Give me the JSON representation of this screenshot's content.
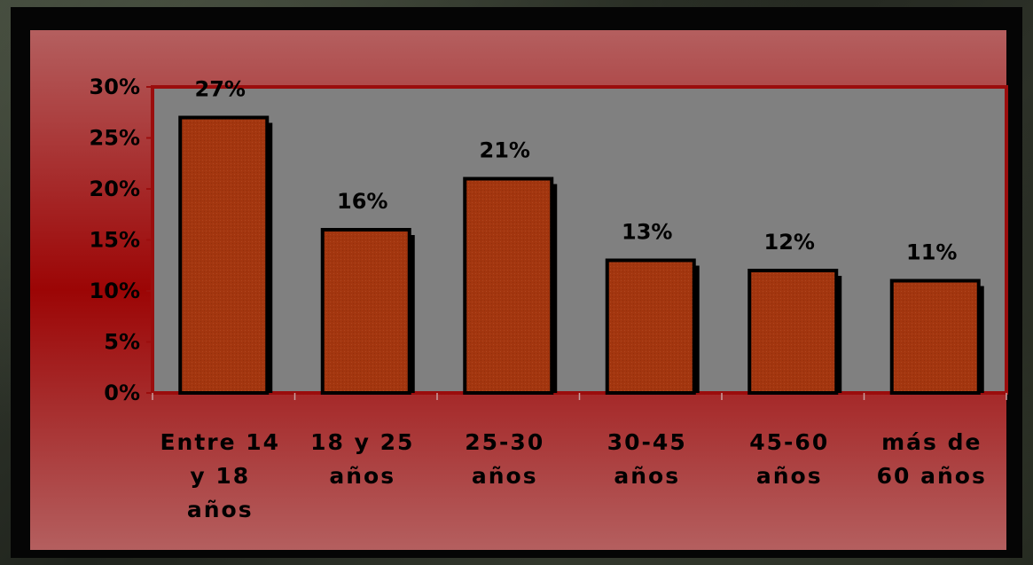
{
  "chart_data": {
    "type": "bar",
    "categories": [
      [
        "Entre 14",
        "y 18",
        "años"
      ],
      [
        "18 y 25",
        "años"
      ],
      [
        "25-30",
        "años"
      ],
      [
        "30-45",
        "años"
      ],
      [
        "45-60",
        "años"
      ],
      [
        "más de",
        "60 años"
      ]
    ],
    "values": [
      27,
      16,
      21,
      13,
      12,
      11
    ],
    "data_labels": [
      "27%",
      "16%",
      "21%",
      "13%",
      "12%",
      "11%"
    ],
    "yticks": [
      0,
      5,
      10,
      15,
      20,
      25,
      30
    ],
    "ytick_labels": [
      "0%",
      "5%",
      "10%",
      "15%",
      "20%",
      "25%",
      "30%"
    ],
    "ylim": [
      0,
      30
    ],
    "title": "",
    "xlabel": "",
    "ylabel": "",
    "grid": false,
    "legend": "none",
    "colors": {
      "bar_fill": "#a3360f",
      "bar_outline": "#000000",
      "bar_shadow": "#000000",
      "plot_background": "#808080",
      "plot_border": "#9b0d0d",
      "chart_background_edge": "#b45f5f",
      "chart_background_center": "#9c0505"
    }
  }
}
